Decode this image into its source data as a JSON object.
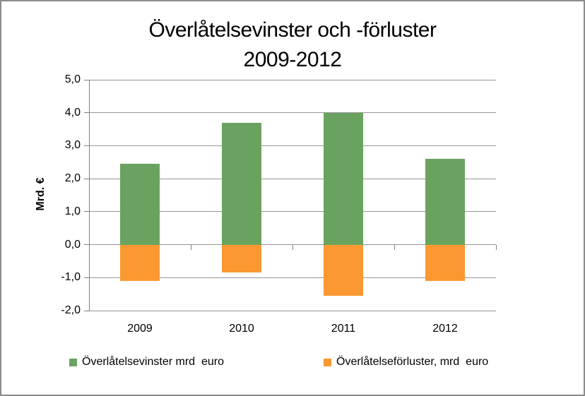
{
  "figure": {
    "title_lines": [
      "Överlåtelsevinster och -förluster",
      "2009-2012"
    ]
  },
  "chart_data": {
    "type": "bar",
    "title": "Överlåtelsevinster och -förluster 2009-2012",
    "xlabel": "",
    "ylabel": "Mrd. €",
    "categories": [
      "2009",
      "2010",
      "2011",
      "2012"
    ],
    "series": [
      {
        "name": "Överlåtelsevinster mrd  euro",
        "color": "#6aa35f",
        "values": [
          2.45,
          3.7,
          4.0,
          2.6
        ]
      },
      {
        "name": "Överlåtelseförluster, mrd  euro",
        "color": "#fc9832",
        "values": [
          -1.1,
          -0.85,
          -1.55,
          -1.1
        ]
      }
    ],
    "ylim": [
      -2,
      5
    ],
    "y_ticks": [
      {
        "value": 5,
        "label": "5,0"
      },
      {
        "value": 4,
        "label": "4,0"
      },
      {
        "value": 3,
        "label": "3,0"
      },
      {
        "value": 2,
        "label": "2,0"
      },
      {
        "value": 1,
        "label": "1,0"
      },
      {
        "value": 0,
        "label": "0,0"
      },
      {
        "value": -1,
        "label": "-1,0"
      },
      {
        "value": -2,
        "label": "-2,0"
      }
    ],
    "decimal_separator": ",",
    "grid": true,
    "legend_position": "bottom",
    "colors": {
      "gridline": "#969696",
      "axis": "#7f7f7f",
      "frame_border": "#8c8c8c",
      "background": "#ffffff",
      "text": "#000000"
    }
  }
}
